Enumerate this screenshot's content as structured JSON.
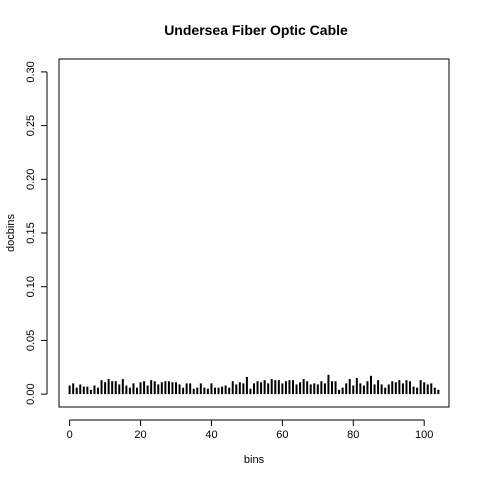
{
  "chart_data": {
    "type": "bar",
    "title": "Undersea Fiber Optic Cable",
    "xlabel": "bins",
    "ylabel": "docbins",
    "xlim": [
      -3,
      107
    ],
    "ylim": [
      -0.012,
      0.312
    ],
    "x_ticks": [
      0,
      20,
      40,
      60,
      80,
      100
    ],
    "x_tick_labels": [
      "0",
      "20",
      "40",
      "60",
      "80",
      "100"
    ],
    "y_ticks": [
      0.0,
      0.05,
      0.1,
      0.15,
      0.2,
      0.25,
      0.3
    ],
    "y_tick_labels": [
      "0.00",
      "0.05",
      "0.10",
      "0.15",
      "0.20",
      "0.25",
      "0.30"
    ],
    "grid": false,
    "x": [
      0,
      1,
      2,
      3,
      4,
      5,
      6,
      7,
      8,
      9,
      10,
      11,
      12,
      13,
      14,
      15,
      16,
      17,
      18,
      19,
      20,
      21,
      22,
      23,
      24,
      25,
      26,
      27,
      28,
      29,
      30,
      31,
      32,
      33,
      34,
      35,
      36,
      37,
      38,
      39,
      40,
      41,
      42,
      43,
      44,
      45,
      46,
      47,
      48,
      49,
      50,
      51,
      52,
      53,
      54,
      55,
      56,
      57,
      58,
      59,
      60,
      61,
      62,
      63,
      64,
      65,
      66,
      67,
      68,
      69,
      70,
      71,
      72,
      73,
      74,
      75,
      76,
      77,
      78,
      79,
      80,
      81,
      82,
      83,
      84,
      85,
      86,
      87,
      88,
      89,
      90,
      91,
      92,
      93,
      94,
      95,
      96,
      97,
      98,
      99,
      100,
      101,
      102,
      103,
      104
    ],
    "values": [
      0.008,
      0.01,
      0.006,
      0.009,
      0.007,
      0.007,
      0.004,
      0.008,
      0.006,
      0.013,
      0.011,
      0.014,
      0.012,
      0.012,
      0.009,
      0.014,
      0.008,
      0.006,
      0.01,
      0.006,
      0.011,
      0.012,
      0.008,
      0.013,
      0.012,
      0.009,
      0.011,
      0.012,
      0.012,
      0.011,
      0.011,
      0.009,
      0.006,
      0.01,
      0.01,
      0.005,
      0.006,
      0.01,
      0.006,
      0.005,
      0.01,
      0.006,
      0.006,
      0.007,
      0.008,
      0.006,
      0.012,
      0.009,
      0.011,
      0.01,
      0.016,
      0.005,
      0.01,
      0.012,
      0.011,
      0.013,
      0.01,
      0.014,
      0.013,
      0.013,
      0.01,
      0.012,
      0.013,
      0.013,
      0.009,
      0.011,
      0.014,
      0.012,
      0.009,
      0.01,
      0.009,
      0.012,
      0.01,
      0.018,
      0.012,
      0.012,
      0.004,
      0.006,
      0.01,
      0.014,
      0.008,
      0.015,
      0.01,
      0.008,
      0.012,
      0.017,
      0.009,
      0.013,
      0.009,
      0.006,
      0.009,
      0.012,
      0.011,
      0.013,
      0.01,
      0.013,
      0.012,
      0.007,
      0.006,
      0.013,
      0.011,
      0.009,
      0.01,
      0.006,
      0.004
    ]
  }
}
